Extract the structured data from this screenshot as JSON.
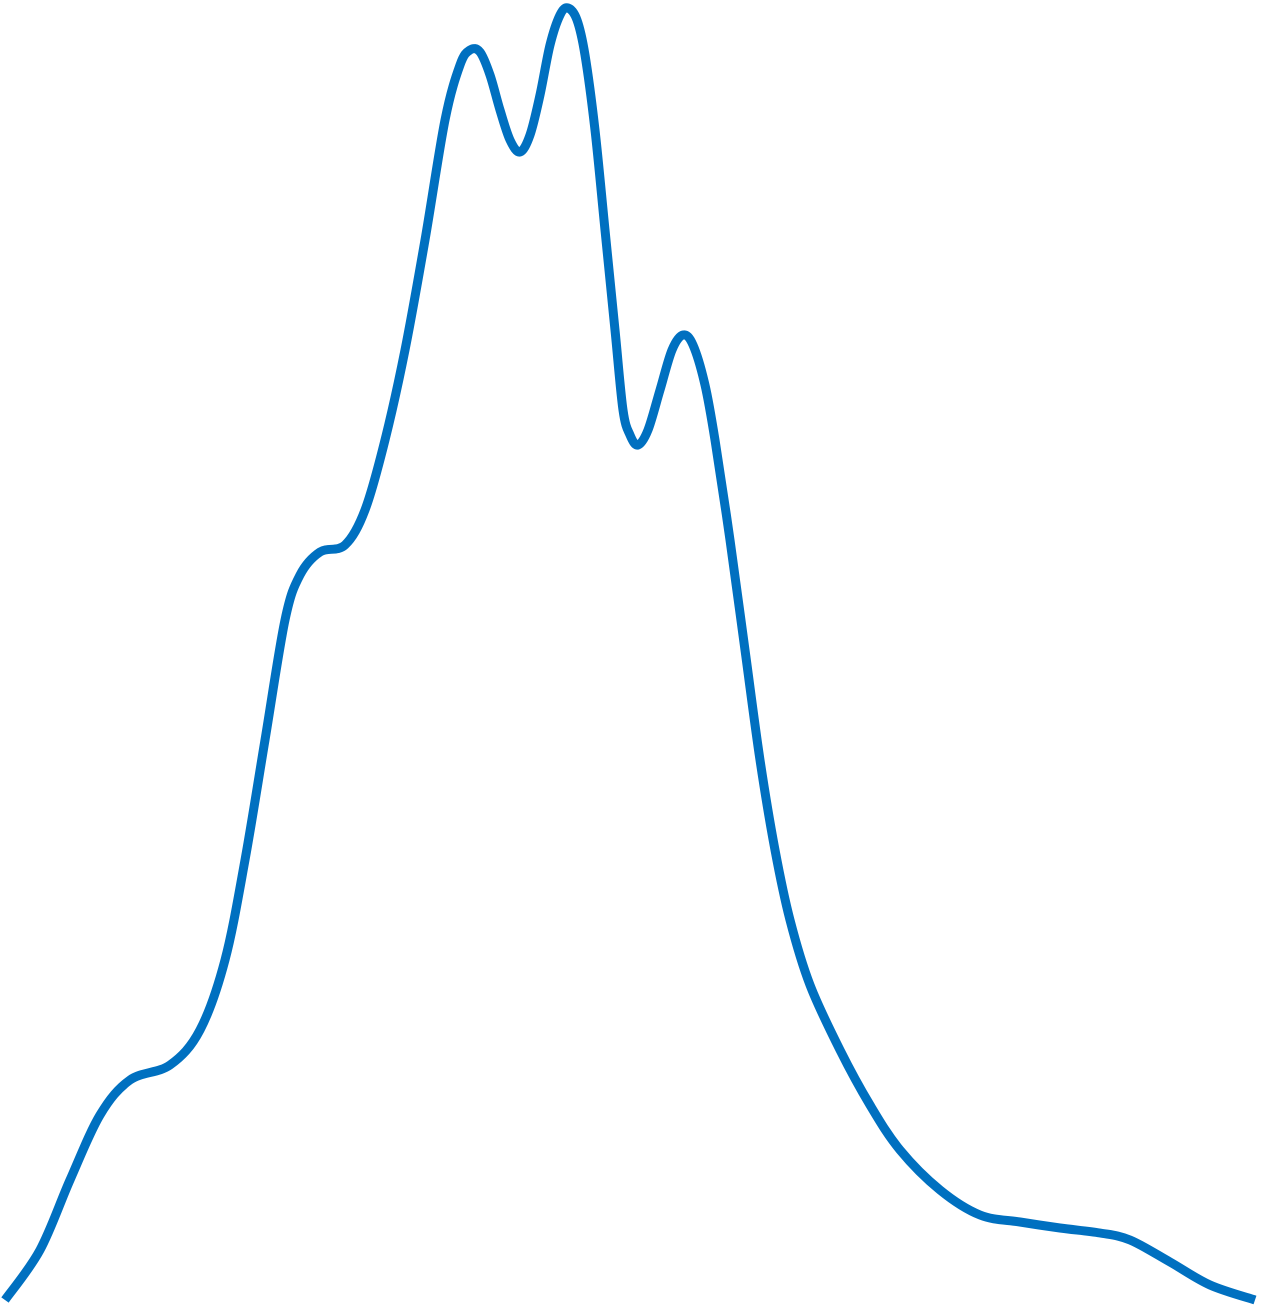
{
  "chart_data": {
    "type": "line",
    "x": [
      5,
      40,
      70,
      100,
      130,
      170,
      200,
      225,
      245,
      265,
      285,
      300,
      320,
      345,
      365,
      385,
      405,
      425,
      445,
      460,
      470,
      480,
      490,
      500,
      510,
      520,
      530,
      540,
      550,
      560,
      568,
      577,
      585,
      595,
      605,
      615,
      623,
      630,
      638,
      648,
      660,
      672,
      683,
      693,
      705,
      715,
      730,
      745,
      760,
      775,
      790,
      810,
      840,
      870,
      900,
      940,
      980,
      1020,
      1060,
      1100,
      1130,
      1170,
      1210,
      1255
    ],
    "series": [
      {
        "color": "#0070c0",
        "values": [
          0,
          50,
          120,
          185,
          220,
          235,
          270,
          340,
          440,
          560,
          680,
          725,
          748,
          755,
          790,
          860,
          950,
          1060,
          1180,
          1235,
          1250,
          1248,
          1225,
          1190,
          1160,
          1148,
          1165,
          1205,
          1255,
          1285,
          1292,
          1280,
          1245,
          1170,
          1070,
          970,
          890,
          865,
          855,
          870,
          910,
          950,
          965,
          955,
          915,
          860,
          760,
          650,
          540,
          450,
          380,
          315,
          250,
          195,
          150,
          110,
          85,
          78,
          72,
          67,
          60,
          38,
          15,
          0
        ]
      }
    ],
    "xlim": [
      0,
      1261
    ],
    "ylim": [
      -11,
      1300
    ]
  }
}
